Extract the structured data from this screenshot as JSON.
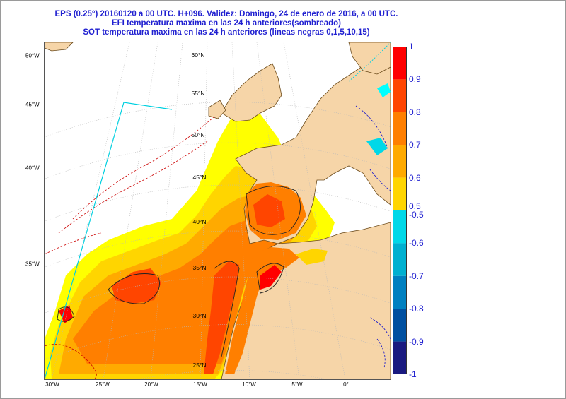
{
  "titles": {
    "line1": "EPS (0.25°) 20160120 a 00 UTC.  H+096. Validez: Domingo, 24 de enero de 2016,  a  00 UTC.",
    "line2": "EFI temperatura maxima en las 24 h anteriores(sombreado)",
    "line3": "SOT temperatura maxima en las 24 h anteriores (lineas negras 0,1,5,10,15)"
  },
  "colorbar": {
    "labels": [
      "1",
      "0.9",
      "0.8",
      "0.7",
      "0.6",
      "0.5",
      "-0.5",
      "-0.6",
      "-0.7",
      "-0.8",
      "-0.9",
      "-1"
    ],
    "positive_colors": [
      "#ff0000",
      "#ff4500",
      "#ff7f00",
      "#ffaa00",
      "#ffd500",
      "#ffff00"
    ],
    "negative_colors": [
      "#00ffff",
      "#00d8e8",
      "#00b0d0",
      "#0080c0",
      "#0050a0",
      "#1a1a80"
    ]
  },
  "lon_labels": [
    "30°W",
    "25°W",
    "20°W",
    "15°W",
    "10°W",
    "5°W",
    "0°"
  ],
  "lat_labels_left": [
    "50°W",
    "45°W",
    "40°W",
    "35°W"
  ],
  "lat_labels_inner": [
    "60°N",
    "55°N",
    "50°N",
    "45°N",
    "40°N",
    "35°N",
    "30°N",
    "25°N"
  ],
  "colors": {
    "land": "#f6d5a8",
    "sea": "#ffffff",
    "title": "#1f1fd0",
    "border": "#000000",
    "graticule": "#b9b9b9"
  }
}
